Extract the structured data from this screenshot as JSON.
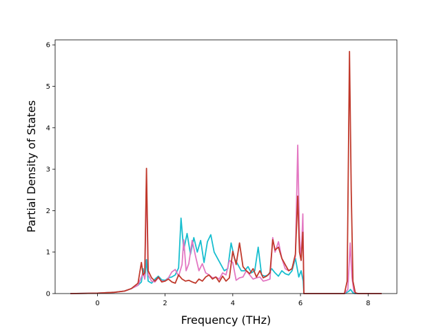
{
  "chart_data": {
    "type": "line",
    "xlabel": "Frequency (THz)",
    "ylabel": "Partial Density of States",
    "xlim": [
      -1.25,
      8.85
    ],
    "ylim": [
      0,
      6.12
    ],
    "xticks": [
      "0",
      "2",
      "4",
      "6",
      "8"
    ],
    "yticks": [
      "0",
      "1",
      "2",
      "3",
      "4",
      "5",
      "6"
    ],
    "grid": false,
    "series": [
      {
        "color": "#17becf",
        "points": [
          [
            -0.8,
            0
          ],
          [
            0,
            0.01
          ],
          [
            0.5,
            0.03
          ],
          [
            0.8,
            0.06
          ],
          [
            1.0,
            0.12
          ],
          [
            1.2,
            0.2
          ],
          [
            1.3,
            0.28
          ],
          [
            1.35,
            0.6
          ],
          [
            1.4,
            0.35
          ],
          [
            1.45,
            0.82
          ],
          [
            1.5,
            0.3
          ],
          [
            1.6,
            0.25
          ],
          [
            1.7,
            0.35
          ],
          [
            1.8,
            0.42
          ],
          [
            1.9,
            0.33
          ],
          [
            2.0,
            0.32
          ],
          [
            2.1,
            0.38
          ],
          [
            2.2,
            0.4
          ],
          [
            2.3,
            0.45
          ],
          [
            2.4,
            0.62
          ],
          [
            2.47,
            1.82
          ],
          [
            2.55,
            1.05
          ],
          [
            2.65,
            1.45
          ],
          [
            2.75,
            0.95
          ],
          [
            2.85,
            1.35
          ],
          [
            2.95,
            1.0
          ],
          [
            3.05,
            1.28
          ],
          [
            3.15,
            0.75
          ],
          [
            3.25,
            1.25
          ],
          [
            3.35,
            1.42
          ],
          [
            3.45,
            1.0
          ],
          [
            3.55,
            0.85
          ],
          [
            3.65,
            0.7
          ],
          [
            3.75,
            0.55
          ],
          [
            3.85,
            0.6
          ],
          [
            3.95,
            1.22
          ],
          [
            4.05,
            0.85
          ],
          [
            4.15,
            0.7
          ],
          [
            4.25,
            0.55
          ],
          [
            4.35,
            0.55
          ],
          [
            4.45,
            0.65
          ],
          [
            4.55,
            0.5
          ],
          [
            4.65,
            0.55
          ],
          [
            4.75,
            1.12
          ],
          [
            4.85,
            0.45
          ],
          [
            4.95,
            0.42
          ],
          [
            5.05,
            0.45
          ],
          [
            5.15,
            0.6
          ],
          [
            5.25,
            0.5
          ],
          [
            5.35,
            0.42
          ],
          [
            5.45,
            0.55
          ],
          [
            5.55,
            0.48
          ],
          [
            5.65,
            0.45
          ],
          [
            5.75,
            0.55
          ],
          [
            5.85,
            0.85
          ],
          [
            5.95,
            0.4
          ],
          [
            6.02,
            0.55
          ],
          [
            6.08,
            0.3
          ],
          [
            6.1,
            0
          ],
          [
            7.3,
            0
          ],
          [
            7.42,
            0.05
          ],
          [
            7.48,
            0.1
          ],
          [
            7.55,
            0.02
          ],
          [
            7.6,
            0
          ],
          [
            8.4,
            0
          ]
        ]
      },
      {
        "color": "#e377c2",
        "points": [
          [
            -0.8,
            0
          ],
          [
            0,
            0.01
          ],
          [
            0.5,
            0.03
          ],
          [
            0.8,
            0.06
          ],
          [
            1.0,
            0.12
          ],
          [
            1.2,
            0.2
          ],
          [
            1.3,
            0.4
          ],
          [
            1.35,
            0.5
          ],
          [
            1.4,
            0.35
          ],
          [
            1.45,
            2.8
          ],
          [
            1.5,
            0.45
          ],
          [
            1.6,
            0.3
          ],
          [
            1.7,
            0.28
          ],
          [
            1.8,
            0.38
          ],
          [
            1.9,
            0.3
          ],
          [
            2.0,
            0.3
          ],
          [
            2.1,
            0.38
          ],
          [
            2.2,
            0.52
          ],
          [
            2.3,
            0.58
          ],
          [
            2.4,
            0.42
          ],
          [
            2.5,
            0.7
          ],
          [
            2.55,
            1.3
          ],
          [
            2.62,
            0.55
          ],
          [
            2.7,
            0.72
          ],
          [
            2.8,
            1.28
          ],
          [
            2.9,
            0.9
          ],
          [
            3.0,
            0.55
          ],
          [
            3.1,
            0.72
          ],
          [
            3.2,
            0.5
          ],
          [
            3.3,
            0.45
          ],
          [
            3.4,
            0.38
          ],
          [
            3.5,
            0.4
          ],
          [
            3.6,
            0.35
          ],
          [
            3.7,
            0.5
          ],
          [
            3.8,
            0.45
          ],
          [
            3.9,
            0.8
          ],
          [
            4.0,
            0.75
          ],
          [
            4.1,
            0.32
          ],
          [
            4.2,
            0.38
          ],
          [
            4.3,
            0.4
          ],
          [
            4.4,
            0.55
          ],
          [
            4.5,
            0.45
          ],
          [
            4.6,
            0.35
          ],
          [
            4.7,
            0.38
          ],
          [
            4.8,
            0.4
          ],
          [
            4.9,
            0.3
          ],
          [
            5.0,
            0.32
          ],
          [
            5.1,
            0.35
          ],
          [
            5.18,
            1.35
          ],
          [
            5.25,
            1.0
          ],
          [
            5.35,
            1.25
          ],
          [
            5.45,
            0.85
          ],
          [
            5.55,
            0.6
          ],
          [
            5.65,
            0.55
          ],
          [
            5.75,
            0.6
          ],
          [
            5.85,
            0.9
          ],
          [
            5.92,
            3.58
          ],
          [
            5.97,
            1.4
          ],
          [
            6.02,
            0.8
          ],
          [
            6.07,
            1.92
          ],
          [
            6.09,
            0.8
          ],
          [
            6.1,
            0
          ],
          [
            7.3,
            0
          ],
          [
            7.4,
            0.1
          ],
          [
            7.47,
            1.22
          ],
          [
            7.52,
            0.4
          ],
          [
            7.58,
            0.05
          ],
          [
            7.65,
            0
          ],
          [
            8.4,
            0
          ]
        ]
      },
      {
        "color": "#c0392b",
        "points": [
          [
            -0.8,
            0
          ],
          [
            0,
            0.01
          ],
          [
            0.5,
            0.03
          ],
          [
            0.8,
            0.06
          ],
          [
            1.0,
            0.12
          ],
          [
            1.2,
            0.25
          ],
          [
            1.3,
            0.75
          ],
          [
            1.35,
            0.45
          ],
          [
            1.4,
            0.5
          ],
          [
            1.45,
            3.02
          ],
          [
            1.5,
            0.55
          ],
          [
            1.6,
            0.38
          ],
          [
            1.7,
            0.3
          ],
          [
            1.8,
            0.4
          ],
          [
            1.9,
            0.28
          ],
          [
            2.0,
            0.3
          ],
          [
            2.1,
            0.35
          ],
          [
            2.2,
            0.28
          ],
          [
            2.3,
            0.25
          ],
          [
            2.4,
            0.45
          ],
          [
            2.5,
            0.35
          ],
          [
            2.6,
            0.3
          ],
          [
            2.7,
            0.32
          ],
          [
            2.8,
            0.28
          ],
          [
            2.9,
            0.25
          ],
          [
            3.0,
            0.35
          ],
          [
            3.1,
            0.3
          ],
          [
            3.2,
            0.4
          ],
          [
            3.3,
            0.45
          ],
          [
            3.4,
            0.35
          ],
          [
            3.5,
            0.4
          ],
          [
            3.6,
            0.28
          ],
          [
            3.7,
            0.42
          ],
          [
            3.8,
            0.3
          ],
          [
            3.9,
            0.38
          ],
          [
            4.0,
            1.02
          ],
          [
            4.1,
            0.7
          ],
          [
            4.2,
            1.22
          ],
          [
            4.3,
            0.65
          ],
          [
            4.4,
            0.55
          ],
          [
            4.5,
            0.48
          ],
          [
            4.6,
            0.6
          ],
          [
            4.7,
            0.4
          ],
          [
            4.8,
            0.55
          ],
          [
            4.9,
            0.38
          ],
          [
            5.0,
            0.42
          ],
          [
            5.1,
            0.5
          ],
          [
            5.18,
            1.3
          ],
          [
            5.25,
            1.05
          ],
          [
            5.35,
            1.12
          ],
          [
            5.45,
            0.85
          ],
          [
            5.55,
            0.7
          ],
          [
            5.65,
            0.55
          ],
          [
            5.75,
            0.6
          ],
          [
            5.85,
            0.95
          ],
          [
            5.92,
            2.35
          ],
          [
            5.97,
            1.0
          ],
          [
            6.02,
            0.8
          ],
          [
            6.07,
            1.48
          ],
          [
            6.09,
            0.6
          ],
          [
            6.1,
            0
          ],
          [
            7.3,
            0
          ],
          [
            7.38,
            0.3
          ],
          [
            7.45,
            5.84
          ],
          [
            7.5,
            2.5
          ],
          [
            7.55,
            0.3
          ],
          [
            7.62,
            0.02
          ],
          [
            7.7,
            0
          ],
          [
            8.4,
            0
          ]
        ]
      }
    ]
  }
}
